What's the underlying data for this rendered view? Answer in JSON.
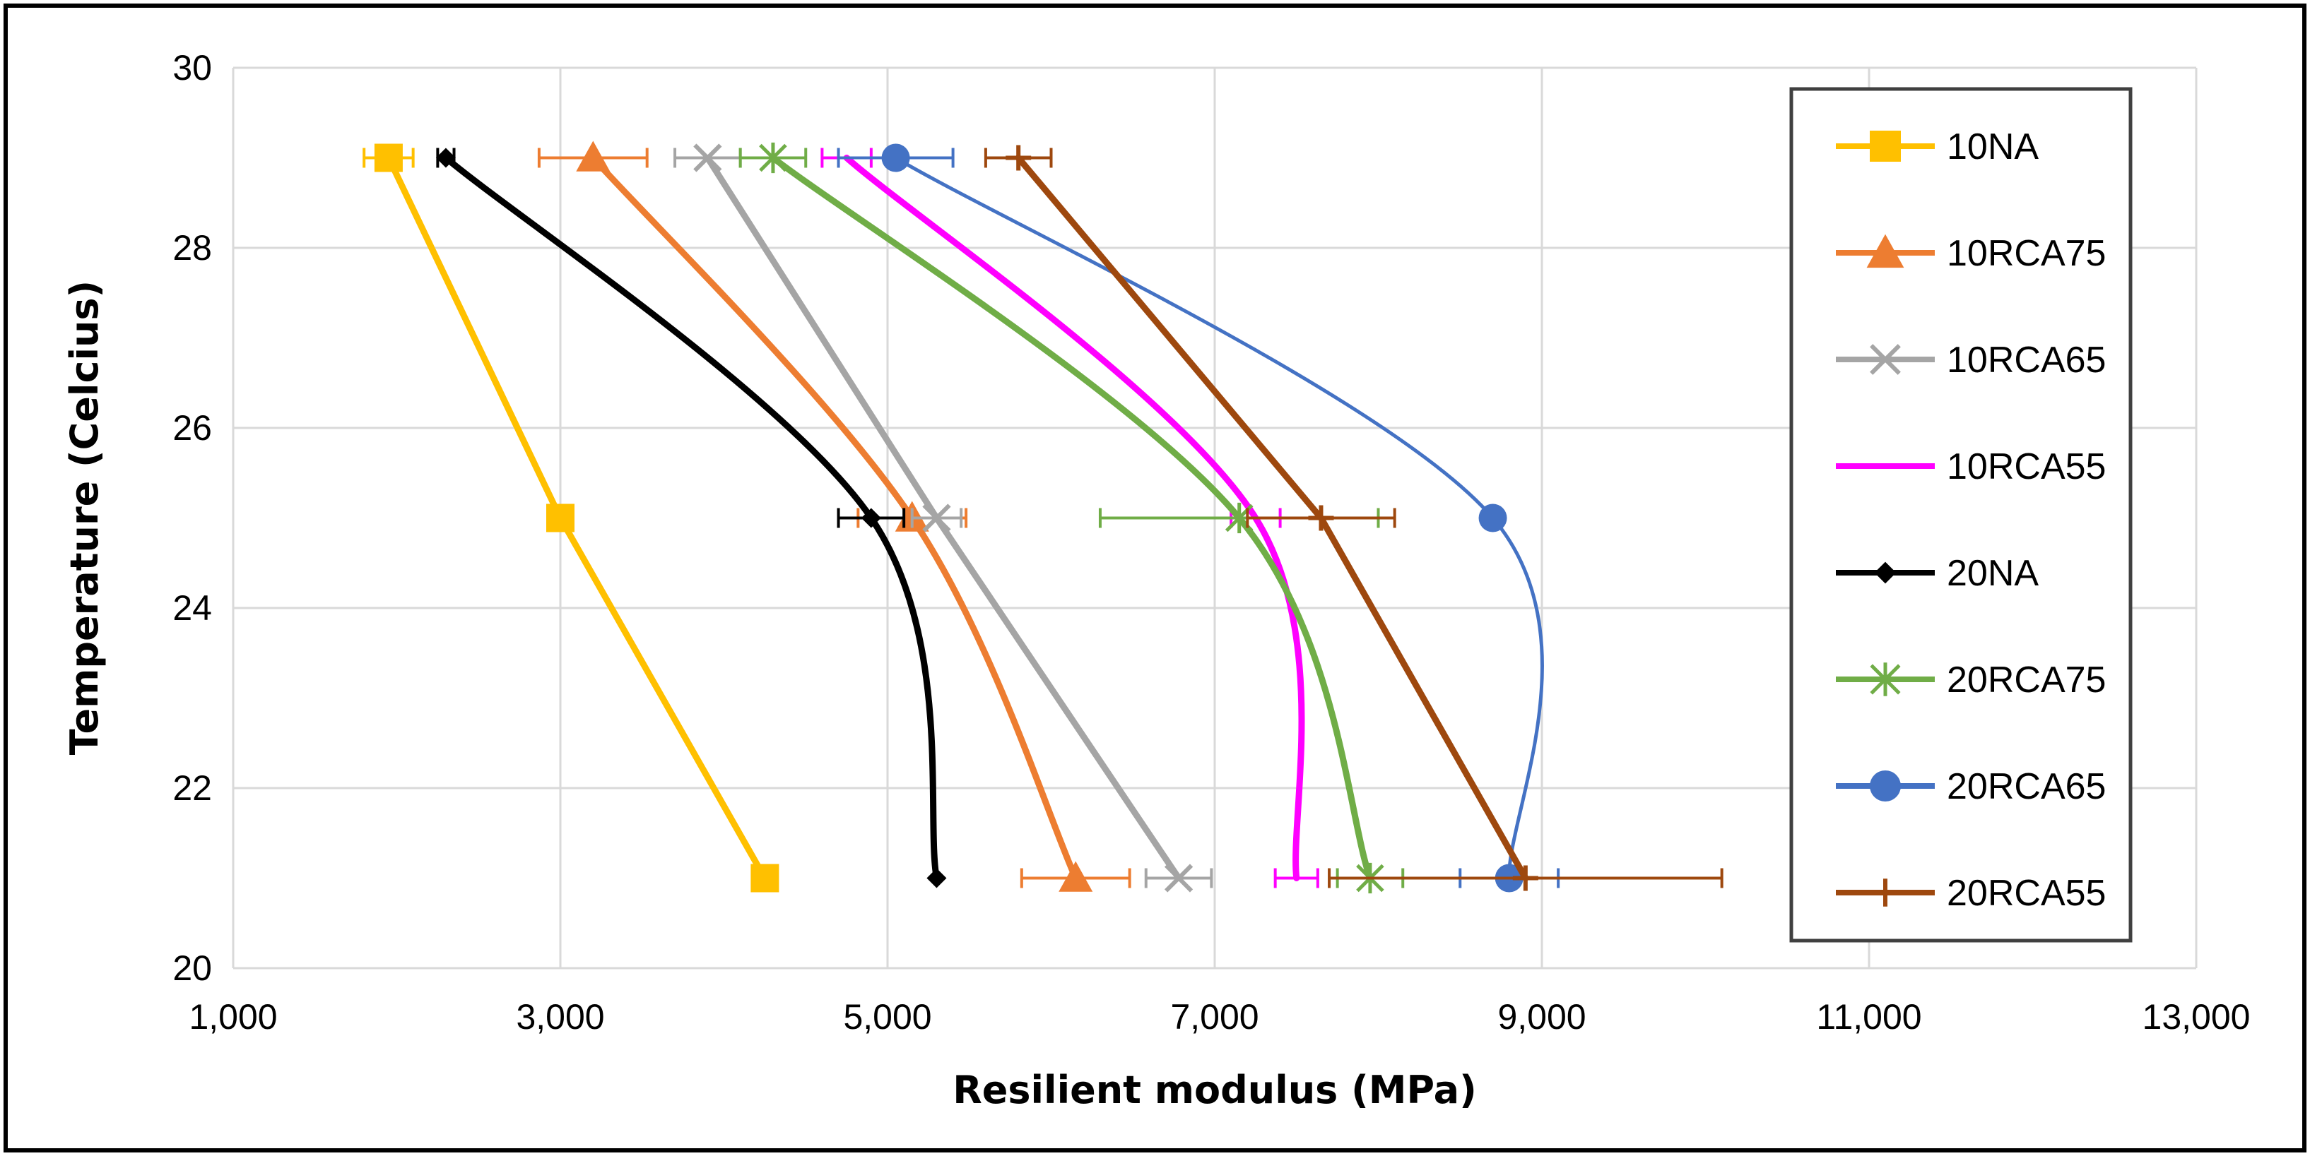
{
  "chart_data": {
    "type": "scatter",
    "title": "",
    "xlabel": "Resilient modulus (MPa)",
    "ylabel": "Temperature (Celcius)",
    "xlim": [
      1000,
      13000
    ],
    "ylim": [
      20,
      30
    ],
    "xticks": [
      1000,
      3000,
      5000,
      7000,
      9000,
      11000,
      13000
    ],
    "xtick_labels": [
      "1,000",
      "3,000",
      "5,000",
      "7,000",
      "9,000",
      "11,000",
      "13,000"
    ],
    "yticks": [
      20,
      22,
      24,
      26,
      28,
      30
    ],
    "ytick_labels": [
      "20",
      "22",
      "24",
      "26",
      "28",
      "30"
    ],
    "grid": true,
    "legend_position": "right",
    "series": [
      {
        "name": "10NA",
        "color": "#FFC000",
        "marker": "square",
        "smooth": false,
        "points": [
          {
            "x": 1950,
            "y": 29,
            "err": 150
          },
          {
            "x": 3000,
            "y": 25
          },
          {
            "x": 4250,
            "y": 21
          }
        ]
      },
      {
        "name": "10RCA75",
        "color": "#ED7D31",
        "marker": "triangle",
        "smooth": true,
        "points": [
          {
            "x": 3200,
            "y": 29,
            "err": 330
          },
          {
            "x": 5150,
            "y": 25,
            "err": 330
          },
          {
            "x": 6150,
            "y": 21,
            "err": 330
          }
        ]
      },
      {
        "name": "10RCA65",
        "color": "#A5A5A5",
        "marker": "x",
        "smooth": false,
        "points": [
          {
            "x": 3900,
            "y": 29,
            "err": 200
          },
          {
            "x": 5300,
            "y": 25,
            "err": 150
          },
          {
            "x": 6780,
            "y": 21,
            "err": 200
          }
        ]
      },
      {
        "name": "10RCA55",
        "color": "#FF00FF",
        "marker": "none",
        "smooth": true,
        "points": [
          {
            "x": 4750,
            "y": 29,
            "err": 150
          },
          {
            "x": 7250,
            "y": 25,
            "err": 150
          },
          {
            "x": 7500,
            "y": 21,
            "err": 130
          }
        ]
      },
      {
        "name": "20NA",
        "color": "#000000",
        "marker": "diamond",
        "smooth": true,
        "points": [
          {
            "x": 2300,
            "y": 29,
            "err": 50
          },
          {
            "x": 4900,
            "y": 25,
            "err": 200
          },
          {
            "x": 5300,
            "y": 21
          }
        ]
      },
      {
        "name": "20RCA75",
        "color": "#70AD47",
        "marker": "star",
        "smooth": true,
        "points": [
          {
            "x": 4300,
            "y": 29,
            "err": 200
          },
          {
            "x": 7150,
            "y": 25,
            "err": 850
          },
          {
            "x": 7950,
            "y": 21,
            "err": 200
          }
        ]
      },
      {
        "name": "20RCA65",
        "color": "#4472C4",
        "marker": "circle",
        "smooth": true,
        "points": [
          {
            "x": 5050,
            "y": 29,
            "err": 350
          },
          {
            "x": 8700,
            "y": 25
          },
          {
            "x": 8800,
            "y": 21,
            "err": 300
          }
        ]
      },
      {
        "name": "20RCA55",
        "color": "#9E480E",
        "marker": "plus",
        "smooth": false,
        "points": [
          {
            "x": 5800,
            "y": 29,
            "err": 200
          },
          {
            "x": 7650,
            "y": 25,
            "err": 450
          },
          {
            "x": 8900,
            "y": 21,
            "err": 1200
          }
        ]
      }
    ]
  }
}
